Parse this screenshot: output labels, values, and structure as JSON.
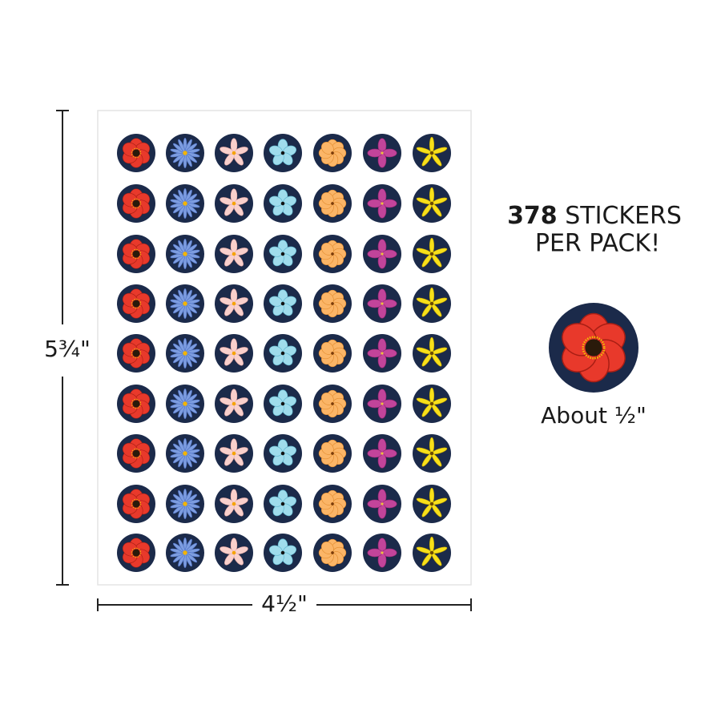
{
  "dimensions": {
    "height": "5¾\"",
    "width": "4½\""
  },
  "promo": {
    "count": 378,
    "line1": "STICKERS",
    "line2": "PER PACK!"
  },
  "sample": {
    "caption": "About ½\""
  }
}
